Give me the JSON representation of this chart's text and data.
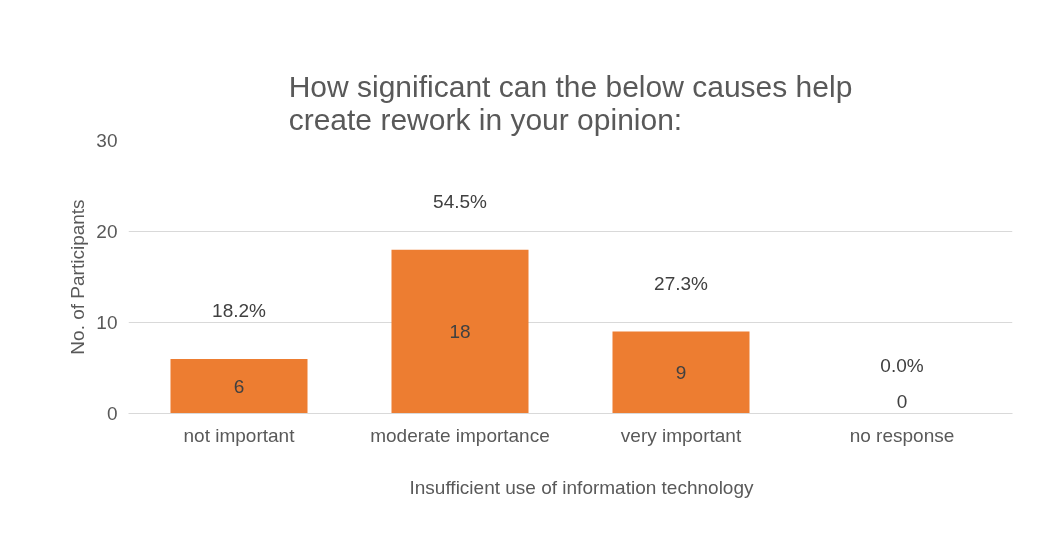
{
  "chart_data": {
    "type": "bar",
    "title": "How significant can the below causes help create rework in your opinion:",
    "ylabel": "No. of Participants",
    "categories": [
      "not important",
      "moderate importance",
      "very important",
      "no response"
    ],
    "series": [
      {
        "name": "Insufficient use of information technology",
        "color": "#ed7d31",
        "values": [
          6,
          18,
          9,
          0
        ]
      }
    ],
    "data_labels": true,
    "annotations": [
      {
        "text": "18.2%",
        "x": "not important",
        "y": 6
      },
      {
        "text": "54.5%",
        "x": "moderate importance",
        "y": 18
      },
      {
        "text": "27.3%",
        "x": "very important",
        "y": 9
      },
      {
        "text": "0.0%",
        "x": "no response",
        "y": 0
      }
    ],
    "ylim": [
      0,
      30
    ],
    "yticks": [
      0,
      10,
      20,
      30
    ],
    "grid": "y",
    "legend": "bottom"
  }
}
